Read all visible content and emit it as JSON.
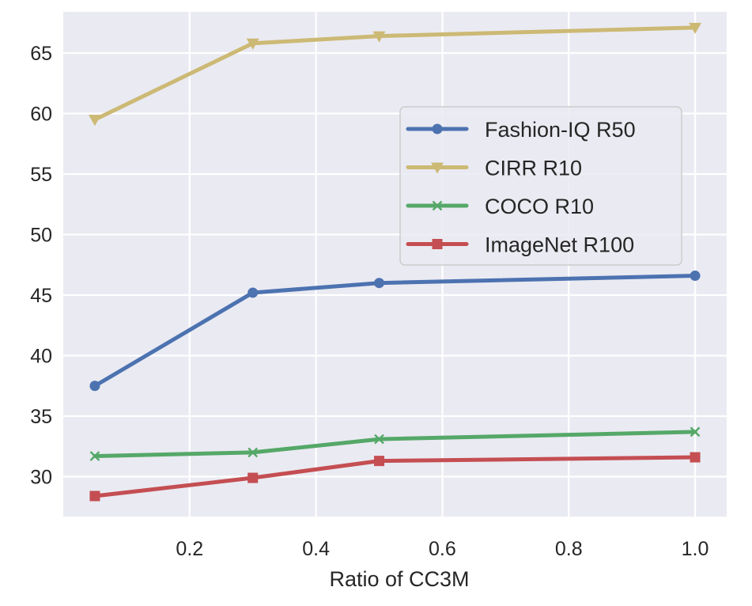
{
  "chart_data": {
    "type": "line",
    "title": "",
    "xlabel": "Ratio of CC3M",
    "ylabel": "",
    "xlim": [
      0.0,
      1.05
    ],
    "ylim": [
      26.7,
      68.4
    ],
    "xticks": [
      0.2,
      0.4,
      0.6,
      0.8,
      1.0
    ],
    "xtick_labels": [
      "0.2",
      "0.4",
      "0.6",
      "0.8",
      "1.0"
    ],
    "yticks": [
      30,
      35,
      40,
      45,
      50,
      55,
      60,
      65
    ],
    "ytick_labels": [
      "30",
      "35",
      "40",
      "45",
      "50",
      "55",
      "60",
      "65"
    ],
    "grid": true,
    "legend_position": "center-right",
    "x": [
      0.05,
      0.3,
      0.5,
      1.0
    ],
    "series": [
      {
        "name": "Fashion-IQ R50",
        "values": [
          37.5,
          45.2,
          46.0,
          46.6
        ],
        "color": "#4c72b0",
        "marker": "circle"
      },
      {
        "name": "CIRR R10",
        "values": [
          59.5,
          65.8,
          66.4,
          67.1
        ],
        "color": "#ccb974",
        "marker": "triangle-down"
      },
      {
        "name": "COCO R10",
        "values": [
          31.7,
          32.0,
          33.1,
          33.7
        ],
        "color": "#55a868",
        "marker": "x"
      },
      {
        "name": "ImageNet R100",
        "values": [
          28.4,
          29.9,
          31.3,
          31.6
        ],
        "color": "#c44e52",
        "marker": "square"
      }
    ]
  }
}
